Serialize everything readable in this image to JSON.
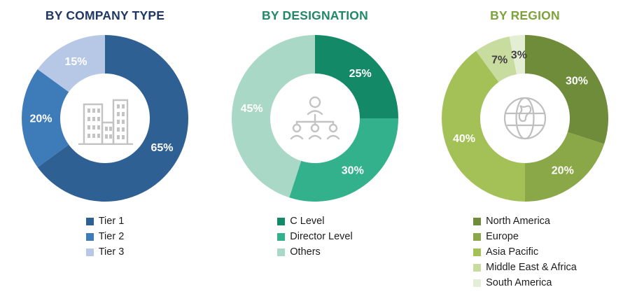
{
  "chart_data": [
    {
      "type": "pie",
      "donut": true,
      "title": "BY COMPANY TYPE",
      "title_color": "#1f3864",
      "icon": "buildings-icon",
      "categories": [
        "Tier 1",
        "Tier 2",
        "Tier 3"
      ],
      "values": [
        65,
        20,
        15
      ],
      "unit": "%",
      "colors": [
        "#2e6093",
        "#3d7bb9",
        "#b6c8e6"
      ],
      "label_colors": [
        "#ffffff",
        "#ffffff",
        "#ffffff"
      ],
      "legend_position": "bottom",
      "start_angle_deg": 0,
      "direction": "clockwise"
    },
    {
      "type": "pie",
      "donut": true,
      "title": "BY DESIGNATION",
      "title_color": "#21886a",
      "icon": "org-chart-icon",
      "categories": [
        "C Level",
        "Director Level",
        "Others"
      ],
      "values": [
        25,
        30,
        45
      ],
      "unit": "%",
      "colors": [
        "#148968",
        "#33b18d",
        "#a9d8c6"
      ],
      "label_colors": [
        "#ffffff",
        "#ffffff",
        "#ffffff"
      ],
      "legend_position": "bottom",
      "start_angle_deg": 0,
      "direction": "clockwise"
    },
    {
      "type": "pie",
      "donut": true,
      "title": "BY REGION",
      "title_color": "#7ea23c",
      "icon": "globe-icon",
      "categories": [
        "North America",
        "Europe",
        "Asia Pacific",
        "Middle East & Africa",
        "South America"
      ],
      "values": [
        30,
        20,
        40,
        7,
        3
      ],
      "unit": "%",
      "colors": [
        "#6f8c3a",
        "#8aa847",
        "#a3c156",
        "#c9dc9f",
        "#e4eed4"
      ],
      "label_colors": [
        "#ffffff",
        "#ffffff",
        "#ffffff",
        "#3f3f3f",
        "#3f3f3f"
      ],
      "legend_position": "bottom",
      "start_angle_deg": 0,
      "direction": "clockwise"
    }
  ]
}
